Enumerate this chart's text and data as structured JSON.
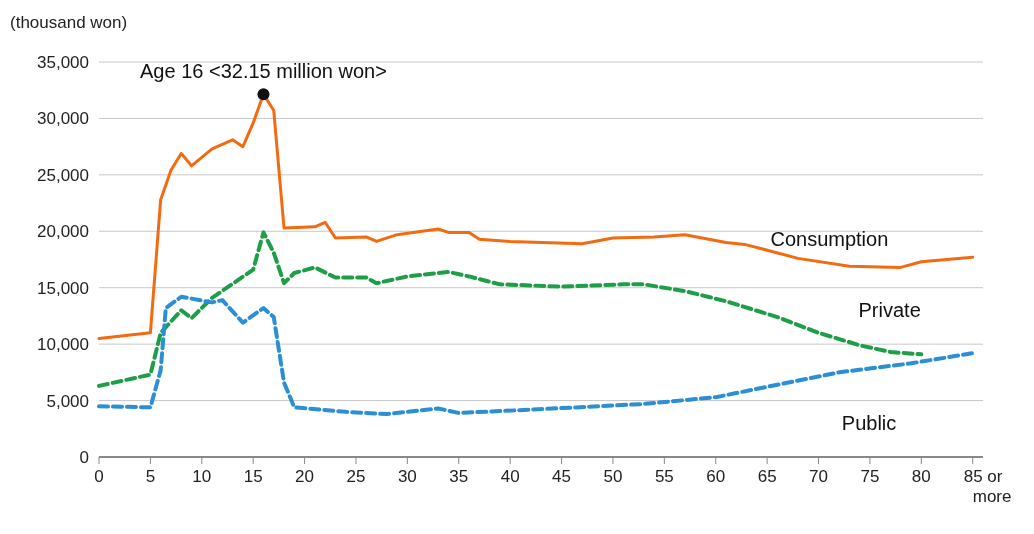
{
  "chart_data": {
    "type": "line",
    "ylabel": "(thousand won)",
    "xlim": [
      0,
      86
    ],
    "ylim": [
      0,
      35000
    ],
    "xticks": [
      0,
      5,
      10,
      15,
      20,
      25,
      30,
      35,
      40,
      45,
      50,
      55,
      60,
      65,
      70,
      75,
      80,
      {
        "value": 85,
        "label": "85 or more"
      }
    ],
    "yticks": [
      {
        "value": 0,
        "label": "0"
      },
      {
        "value": 5000,
        "label": "5,000"
      },
      {
        "value": 10000,
        "label": "10,000"
      },
      {
        "value": 15000,
        "label": "15,000"
      },
      {
        "value": 20000,
        "label": "20,000"
      },
      {
        "value": 25000,
        "label": "25,000"
      },
      {
        "value": 30000,
        "label": "30,000"
      },
      {
        "value": 35000,
        "label": "35,000"
      }
    ],
    "grid": "y",
    "marker": "none",
    "annotations": [
      {
        "text": "Age 16 <32.15 million won>",
        "x": 16,
        "y": 32150
      }
    ],
    "series": [
      {
        "name": "Consumption",
        "color": "#f26b10",
        "line_style": "solid",
        "x": [
          0,
          5,
          6,
          7,
          8,
          9,
          11,
          13,
          14,
          15,
          16,
          17,
          18,
          21,
          22,
          23,
          26,
          27,
          29,
          33,
          34,
          36,
          37,
          40,
          47,
          50,
          54,
          57,
          61,
          63,
          68,
          73,
          78,
          80,
          85
        ],
        "values": [
          10500,
          11000,
          22800,
          25400,
          26900,
          25800,
          27300,
          28100,
          27500,
          29600,
          32150,
          30700,
          20300,
          20400,
          20800,
          19400,
          19500,
          19100,
          19700,
          20200,
          19900,
          19900,
          19300,
          19100,
          18900,
          19400,
          19500,
          19700,
          19000,
          18800,
          17600,
          16900,
          16800,
          17300,
          17700
        ]
      },
      {
        "name": "Private",
        "color": "#1e9e48",
        "line_style": "dashed",
        "x": [
          0,
          5,
          6,
          8,
          9,
          11,
          15,
          16,
          17,
          18,
          19,
          21,
          23,
          26,
          27,
          30,
          34,
          36,
          39,
          45,
          51,
          53,
          57,
          61,
          66,
          70,
          74,
          77,
          80
        ],
        "values": [
          6300,
          7300,
          11000,
          13000,
          12300,
          14100,
          16600,
          19900,
          18100,
          15400,
          16300,
          16800,
          15900,
          15900,
          15400,
          16000,
          16400,
          16000,
          15300,
          15100,
          15300,
          15300,
          14700,
          13800,
          12400,
          11000,
          9900,
          9300,
          9100
        ]
      },
      {
        "name": "Public",
        "color": "#2b8fd6",
        "line_style": "dashed",
        "x": [
          0,
          5,
          6,
          6.5,
          8,
          11,
          12,
          14,
          16,
          17,
          18,
          19,
          24,
          28,
          33,
          35,
          42,
          53,
          60,
          66,
          72,
          79,
          85
        ],
        "values": [
          4500,
          4400,
          7700,
          13200,
          14200,
          13700,
          13900,
          11900,
          13200,
          12400,
          6600,
          4400,
          4000,
          3800,
          4300,
          3900,
          4200,
          4700,
          5300,
          6400,
          7500,
          8300,
          9200
        ]
      }
    ]
  }
}
